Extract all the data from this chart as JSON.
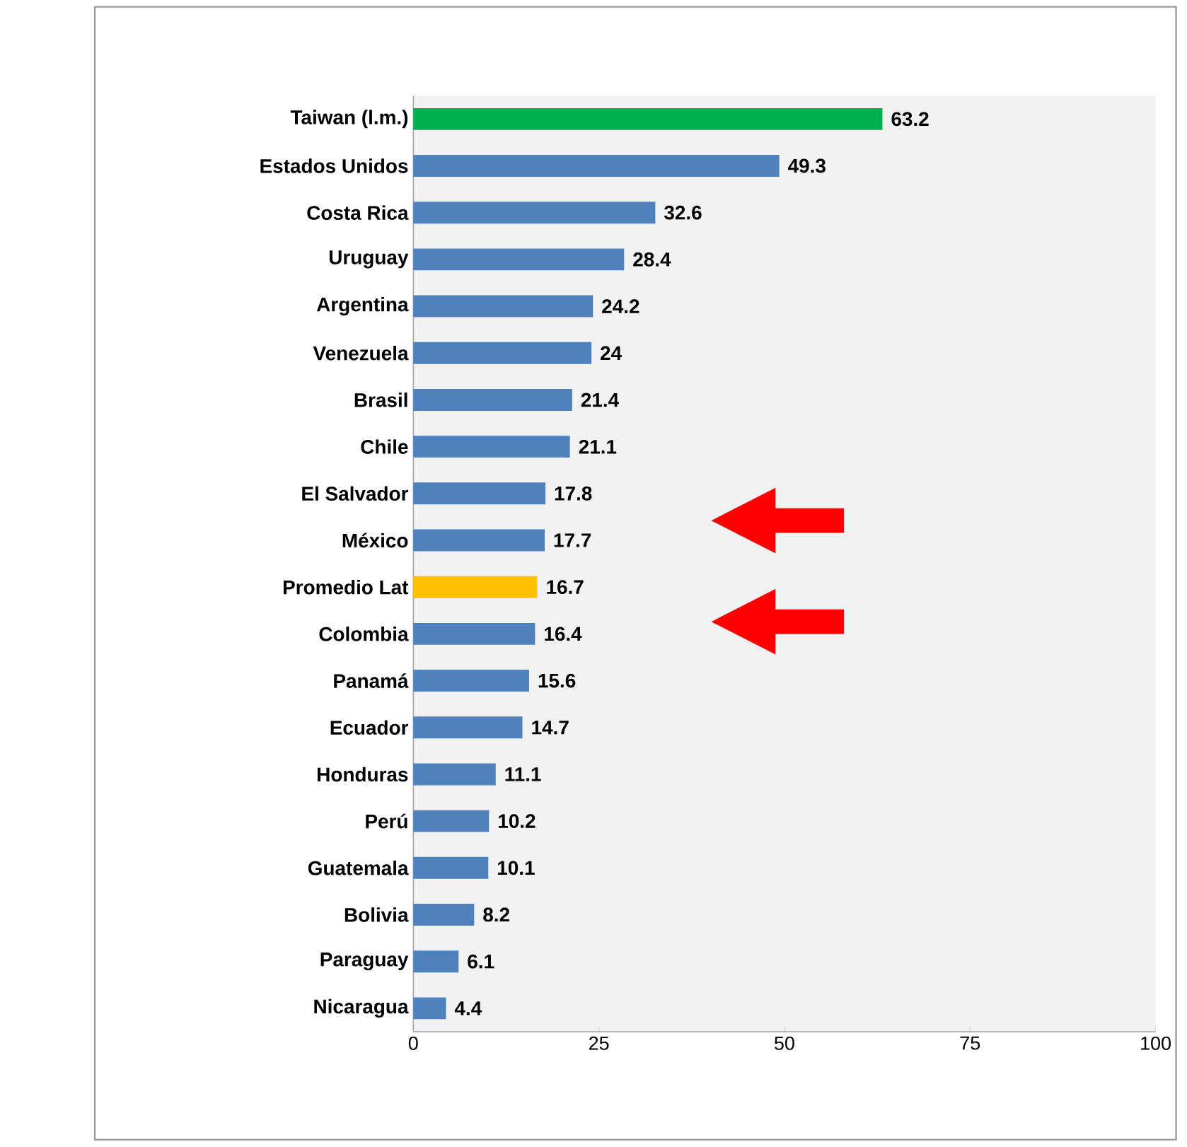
{
  "chart_data": {
    "type": "bar",
    "orientation": "horizontal",
    "categories": [
      "Taiwan (l.m.)",
      "Estados Unidos",
      "Costa Rica",
      "Uruguay",
      "Argentina",
      "Venezuela",
      "Brasil",
      "Chile",
      "El Salvador",
      "México",
      "Promedio Lat",
      "Colombia",
      "Panamá",
      "Ecuador",
      "Honduras",
      "Perú",
      "Guatemala",
      "Bolivia",
      "Paraguay",
      "Nicaragua"
    ],
    "values": [
      63.2,
      49.3,
      32.6,
      28.4,
      24.2,
      24,
      21.4,
      21.1,
      17.8,
      17.7,
      16.7,
      16.4,
      15.6,
      14.7,
      11.1,
      10.2,
      10.1,
      8.2,
      6.1,
      4.4
    ],
    "colors": [
      "#00b050",
      "#4f81bd",
      "#4f81bd",
      "#4f81bd",
      "#4f81bd",
      "#4f81bd",
      "#4f81bd",
      "#4f81bd",
      "#4f81bd",
      "#4f81bd",
      "#ffc000",
      "#4f81bd",
      "#4f81bd",
      "#4f81bd",
      "#4f81bd",
      "#4f81bd",
      "#4f81bd",
      "#4f81bd",
      "#4f81bd",
      "#4f81bd"
    ],
    "xlim": [
      0,
      100
    ],
    "xticks": [
      0,
      25,
      50,
      75,
      100
    ],
    "data_labels": true
  }
}
